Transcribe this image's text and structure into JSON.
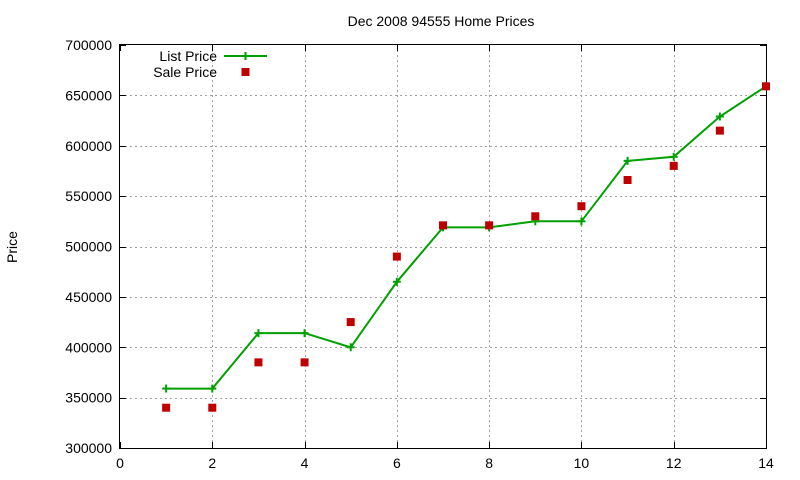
{
  "chart_data": {
    "type": "line",
    "title": "Dec 2008 94555 Home Prices",
    "xlabel": "",
    "ylabel": "Price",
    "xlim": [
      0,
      14
    ],
    "ylim": [
      300000,
      700000
    ],
    "xticks": [
      0,
      2,
      4,
      6,
      8,
      10,
      12,
      14
    ],
    "yticks": [
      300000,
      350000,
      400000,
      450000,
      500000,
      550000,
      600000,
      650000,
      700000
    ],
    "grid": true,
    "legend_position": "top-left",
    "series": [
      {
        "name": "List Price",
        "style": "line-plus",
        "color": "#00a000",
        "x": [
          1,
          2,
          3,
          4,
          5,
          6,
          7,
          8,
          9,
          10,
          11,
          12,
          13,
          14
        ],
        "y": [
          359000,
          359000,
          414000,
          414000,
          400000,
          465000,
          519000,
          519000,
          525000,
          525000,
          585000,
          589000,
          629000,
          659000
        ]
      },
      {
        "name": "Sale Price",
        "style": "square-points",
        "color": "#c00000",
        "x": [
          1,
          2,
          3,
          4,
          5,
          6,
          7,
          8,
          9,
          10,
          11,
          12,
          13,
          14
        ],
        "y": [
          340000,
          340000,
          385000,
          385000,
          425000,
          490000,
          521000,
          521000,
          530000,
          540000,
          566000,
          580000,
          615000,
          659000
        ]
      }
    ]
  }
}
